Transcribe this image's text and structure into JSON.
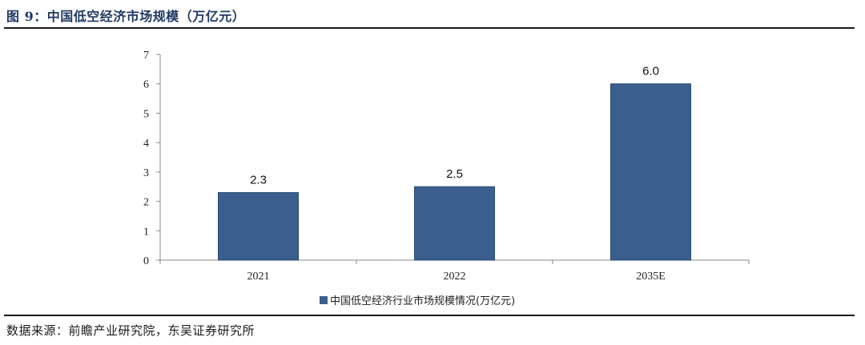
{
  "figure_title": "图 9：中国低空经济市场规模（万亿元）",
  "source_note": "数据来源：前瞻产业研究院，东吴证券研究所",
  "colors": {
    "bar": "#3a5f8f",
    "title": "#1f3864",
    "axis": "#888888"
  },
  "chart_data": {
    "type": "bar",
    "categories": [
      "2021",
      "2022",
      "2035E"
    ],
    "series": [
      {
        "name": "中国低空经济行业市场规模情况(万亿元)",
        "values": [
          2.3,
          2.5,
          6.0
        ]
      }
    ],
    "data_labels": [
      "2.3",
      "2.5",
      "6.0"
    ],
    "yticks": [
      0,
      1,
      2,
      3,
      4,
      5,
      6,
      7
    ],
    "ylim": [
      0,
      7
    ],
    "legend_position": "bottom",
    "grid": false
  }
}
